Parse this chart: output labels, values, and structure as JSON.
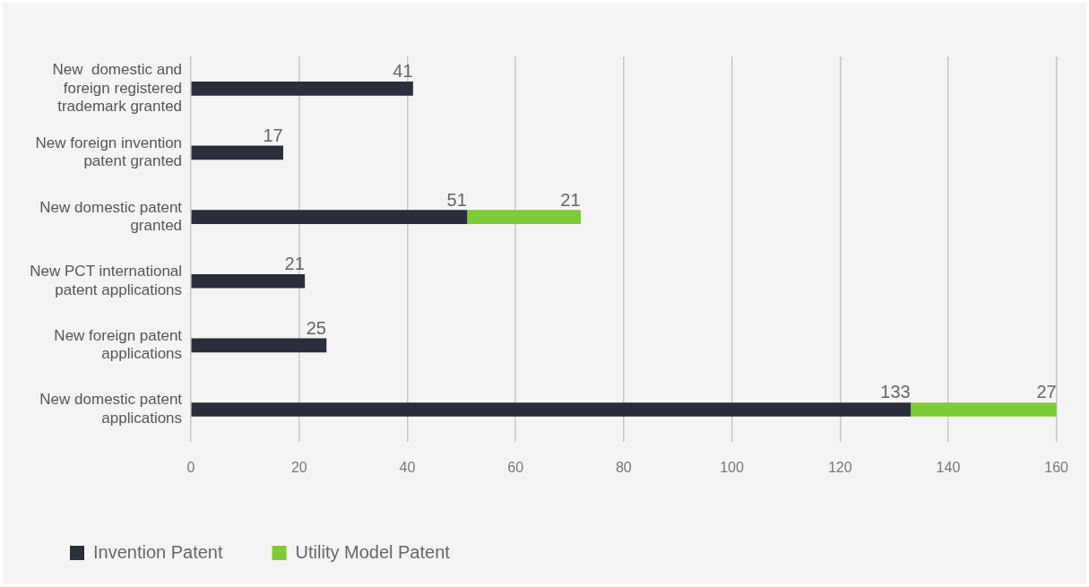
{
  "chart_data": {
    "type": "bar",
    "orientation": "horizontal",
    "stacked": true,
    "categories": [
      "New  domestic and foreign registered trademark granted",
      "New foreign invention patent granted",
      "New domestic patent granted",
      "New PCT international patent applications",
      "New foreign patent applications",
      "New domestic patent applications"
    ],
    "series": [
      {
        "name": "Invention Patent",
        "color": "#2a2d3a",
        "values": [
          41,
          17,
          51,
          21,
          25,
          133
        ]
      },
      {
        "name": "Utility Model Patent",
        "color": "#7dcb35",
        "values": [
          null,
          null,
          21,
          null,
          null,
          27
        ]
      }
    ],
    "xlim": [
      0,
      160
    ],
    "xticks": [
      0,
      20,
      40,
      60,
      80,
      100,
      120,
      140,
      160
    ],
    "grid": "x",
    "legend": "bottom left",
    "data_labels": true
  }
}
